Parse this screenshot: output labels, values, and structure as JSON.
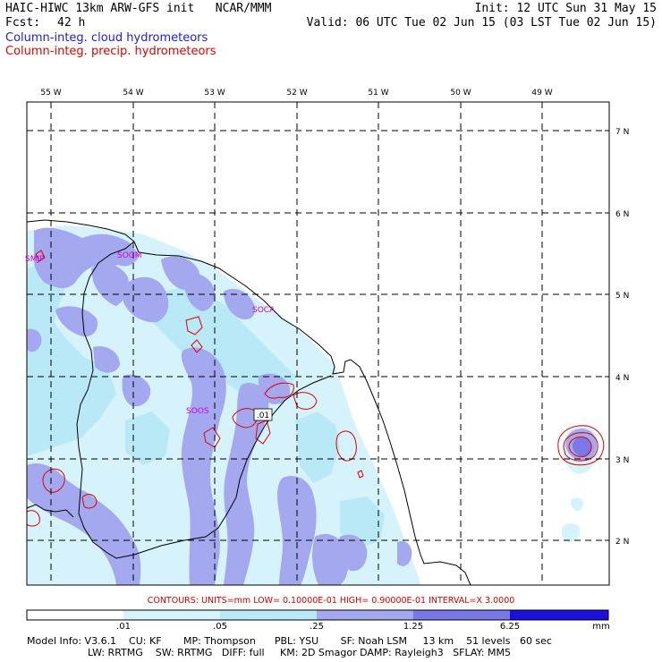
{
  "header": {
    "title": "HAIC-HIWC 13km ARW-GFS init   NCAR/MMM",
    "init": "Init: 12 UTC Sun 31 May 15",
    "fcst_label": "Fcst:",
    "fcst_value": "42 h",
    "valid": "Valid: 06 UTC Tue 02 Jun 15 (03 LST Tue 02 Jun 15)",
    "legend_cloud": "Column-integ. cloud hydrometeors",
    "legend_precip": "Column-integ. precip. hydrometeors"
  },
  "colors": {
    "cloud_text": "#2020d0",
    "precip_text": "#e00000",
    "station": "#d000d0"
  },
  "axes": {
    "lon_labels": [
      "55 W",
      "54 W",
      "53 W",
      "52 W",
      "51 W",
      "50 W",
      "49 W"
    ],
    "lat_labels": [
      "7 N",
      "6 N",
      "5 N",
      "4 N",
      "3 N",
      "2 N"
    ]
  },
  "stations": [
    {
      "id": "SMJP"
    },
    {
      "id": "SOGM"
    },
    {
      "id": "SOCA"
    },
    {
      "id": "SOOS"
    }
  ],
  "contour_label": ".01",
  "contours_info": "CONTOURS:  UNITS=mm  LOW= 0.10000E-01  HIGH= 0.90000E-01  INTERVAL=X  3.0000",
  "colorbar": {
    "labels": [
      ".01",
      ".05",
      ".25",
      "1.25",
      "6.25",
      "mm"
    ],
    "colors": [
      "#ffffff",
      "#d6f3fb",
      "#b9e9f7",
      "#a4a8ee",
      "#7878e6",
      "#1a10dc"
    ]
  },
  "model_info": {
    "line1": "Model Info: V3.6.1    CU: KF       MP: Thompson      PBL: YSU       SF: Noah LSM     13 km    51 levels   60 sec",
    "line2": "LW: RRTMG    SW: RRTMG   DIFF: full     KM: 2D Smagor DAMP: Rayleigh3   SFLAY: MM5"
  }
}
